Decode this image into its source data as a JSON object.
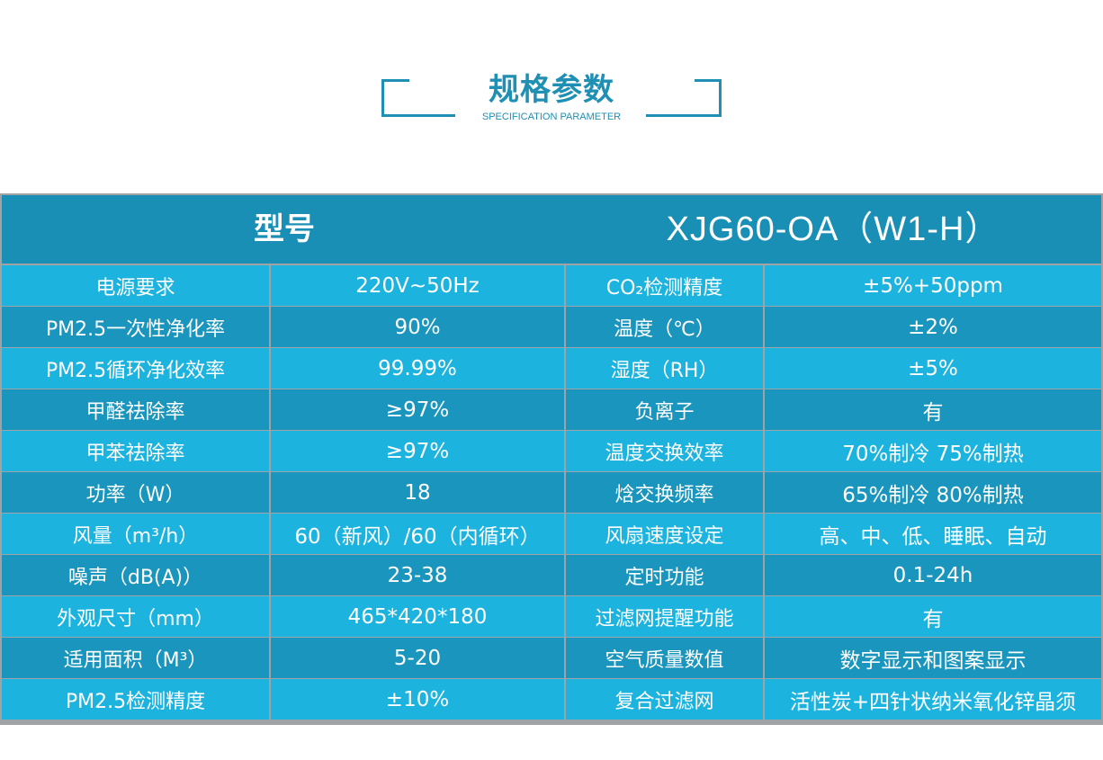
{
  "header": {
    "title": "规格参数",
    "subtitle": "SPECIFICATION PARAMETER"
  },
  "model": {
    "label": "型号",
    "value": "XJG60-OA（W1-H）"
  },
  "rows": [
    {
      "k1": "电源要求",
      "v1": "220V~50Hz",
      "k2": "CO₂检测精度",
      "v2": "±5%+50ppm"
    },
    {
      "k1": "PM2.5一次性净化率",
      "v1": "90%",
      "k2": "温度（℃）",
      "v2": "±2%"
    },
    {
      "k1": "PM2.5循环净化效率",
      "v1": "99.99%",
      "k2": "湿度（RH）",
      "v2": "±5%"
    },
    {
      "k1": "甲醛祛除率",
      "v1": "≥97%",
      "k2": "负离子",
      "v2": "有"
    },
    {
      "k1": "甲苯祛除率",
      "v1": "≥97%",
      "k2": "温度交换效率",
      "v2": "70%制冷 75%制热"
    },
    {
      "k1": "功率（W）",
      "v1": "18",
      "k2": "焓交换频率",
      "v2": "65%制冷 80%制热"
    },
    {
      "k1": "风量（m³/h）",
      "v1": "60（新风）/60（内循环）",
      "k2": "风扇速度设定",
      "v2": "高、中、低、睡眠、自动"
    },
    {
      "k1": "噪声（dB(A)）",
      "v1": "23-38",
      "k2": "定时功能",
      "v2": "0.1-24h"
    },
    {
      "k1": "外观尺寸（mm）",
      "v1": "465*420*180",
      "k2": "过滤网提醒功能",
      "v2": "有"
    },
    {
      "k1": "适用面积（M³）",
      "v1": "5-20",
      "k2": "空气质量数值",
      "v2": "数字显示和图案显示"
    },
    {
      "k1": "PM2.5检测精度",
      "v1": "±10%",
      "k2": "复合过滤网",
      "v2": "活性炭+四针状纳米氧化锌晶须"
    }
  ]
}
